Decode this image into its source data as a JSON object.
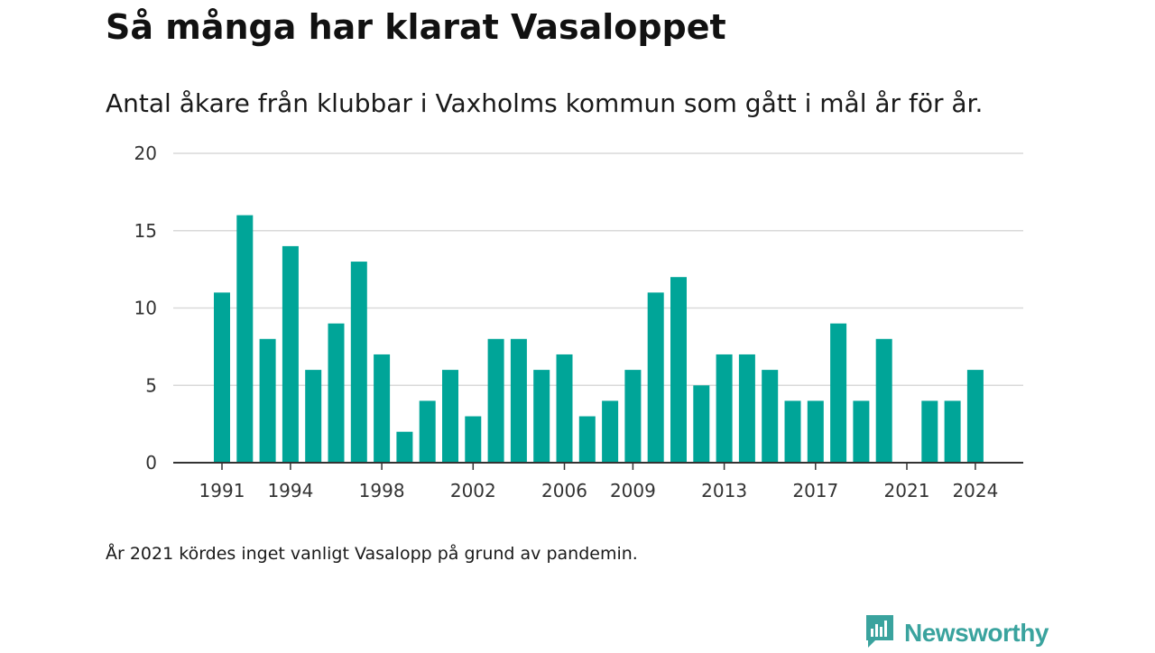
{
  "title": "Så många har klarat Vasaloppet",
  "subtitle": "Antal åkare från klubbar i Vaxholms kommun som gått i mål år för år.",
  "footnote": "År 2021 kördes inget vanligt Vasalopp på grund av pandemin.",
  "brand": {
    "name": "Newsworthy",
    "icon": "newsworthy-logo-icon",
    "color": "#3aa39e"
  },
  "colors": {
    "bar": "#00a598",
    "grid": "#d9d9d9",
    "axis": "#333333"
  },
  "chart_data": {
    "type": "bar",
    "title": "Så många har klarat Vasaloppet",
    "subtitle": "Antal åkare från klubbar i Vaxholms kommun som gått i mål år för år.",
    "xlabel": "",
    "ylabel": "",
    "ylim": [
      0,
      20
    ],
    "yticks": [
      0,
      5,
      10,
      15,
      20
    ],
    "xticks": [
      1991,
      1994,
      1998,
      2002,
      2006,
      2009,
      2013,
      2017,
      2021,
      2024
    ],
    "grid": true,
    "legend": "none",
    "categories": [
      1991,
      1992,
      1993,
      1994,
      1995,
      1996,
      1997,
      1998,
      1999,
      2000,
      2001,
      2002,
      2003,
      2004,
      2005,
      2006,
      2007,
      2008,
      2009,
      2010,
      2011,
      2012,
      2013,
      2014,
      2015,
      2016,
      2017,
      2018,
      2019,
      2020,
      2021,
      2022,
      2023,
      2024
    ],
    "values": [
      11,
      16,
      8,
      14,
      6,
      9,
      13,
      7,
      2,
      4,
      6,
      3,
      8,
      8,
      6,
      7,
      3,
      4,
      6,
      11,
      12,
      5,
      7,
      7,
      6,
      4,
      4,
      9,
      4,
      8,
      0,
      4,
      4,
      6
    ]
  }
}
